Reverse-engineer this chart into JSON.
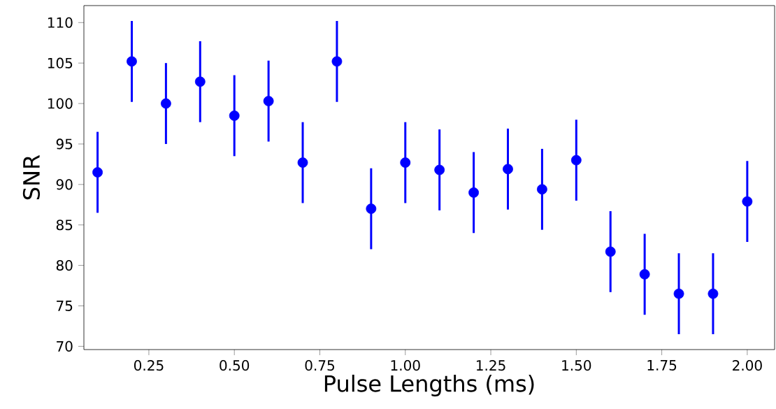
{
  "chart_data": {
    "type": "scatter",
    "xlabel": "Pulse Lengths (ms)",
    "ylabel": "SNR",
    "x": [
      0.1,
      0.2,
      0.3,
      0.4,
      0.5,
      0.6,
      0.7,
      0.8,
      0.9,
      1.0,
      1.1,
      1.2,
      1.3,
      1.4,
      1.5,
      1.6,
      1.7,
      1.8,
      1.9,
      2.0
    ],
    "values": [
      91.5,
      105.2,
      100.0,
      102.7,
      98.5,
      100.3,
      92.7,
      105.2,
      87.0,
      92.7,
      91.8,
      89.0,
      91.9,
      89.4,
      93.0,
      81.7,
      78.9,
      76.5,
      76.5,
      87.9
    ],
    "errors": [
      5,
      5,
      5,
      5,
      5,
      5,
      5,
      5,
      5,
      5,
      5,
      5,
      5,
      5,
      5,
      5,
      5,
      5,
      5,
      5
    ],
    "color": "#0000ff",
    "marker": "circle",
    "xlim": [
      0.06,
      2.08
    ],
    "ylim": [
      69.6,
      112.1
    ],
    "xticks": [
      {
        "value": 0.25,
        "label": "0.25"
      },
      {
        "value": 0.5,
        "label": "0.50"
      },
      {
        "value": 0.75,
        "label": "0.75"
      },
      {
        "value": 1.0,
        "label": "1.00"
      },
      {
        "value": 1.25,
        "label": "1.25"
      },
      {
        "value": 1.5,
        "label": "1.50"
      },
      {
        "value": 1.75,
        "label": "1.75"
      },
      {
        "value": 2.0,
        "label": "2.00"
      }
    ],
    "yticks": [
      70,
      75,
      80,
      85,
      90,
      95,
      100,
      105,
      110
    ]
  }
}
